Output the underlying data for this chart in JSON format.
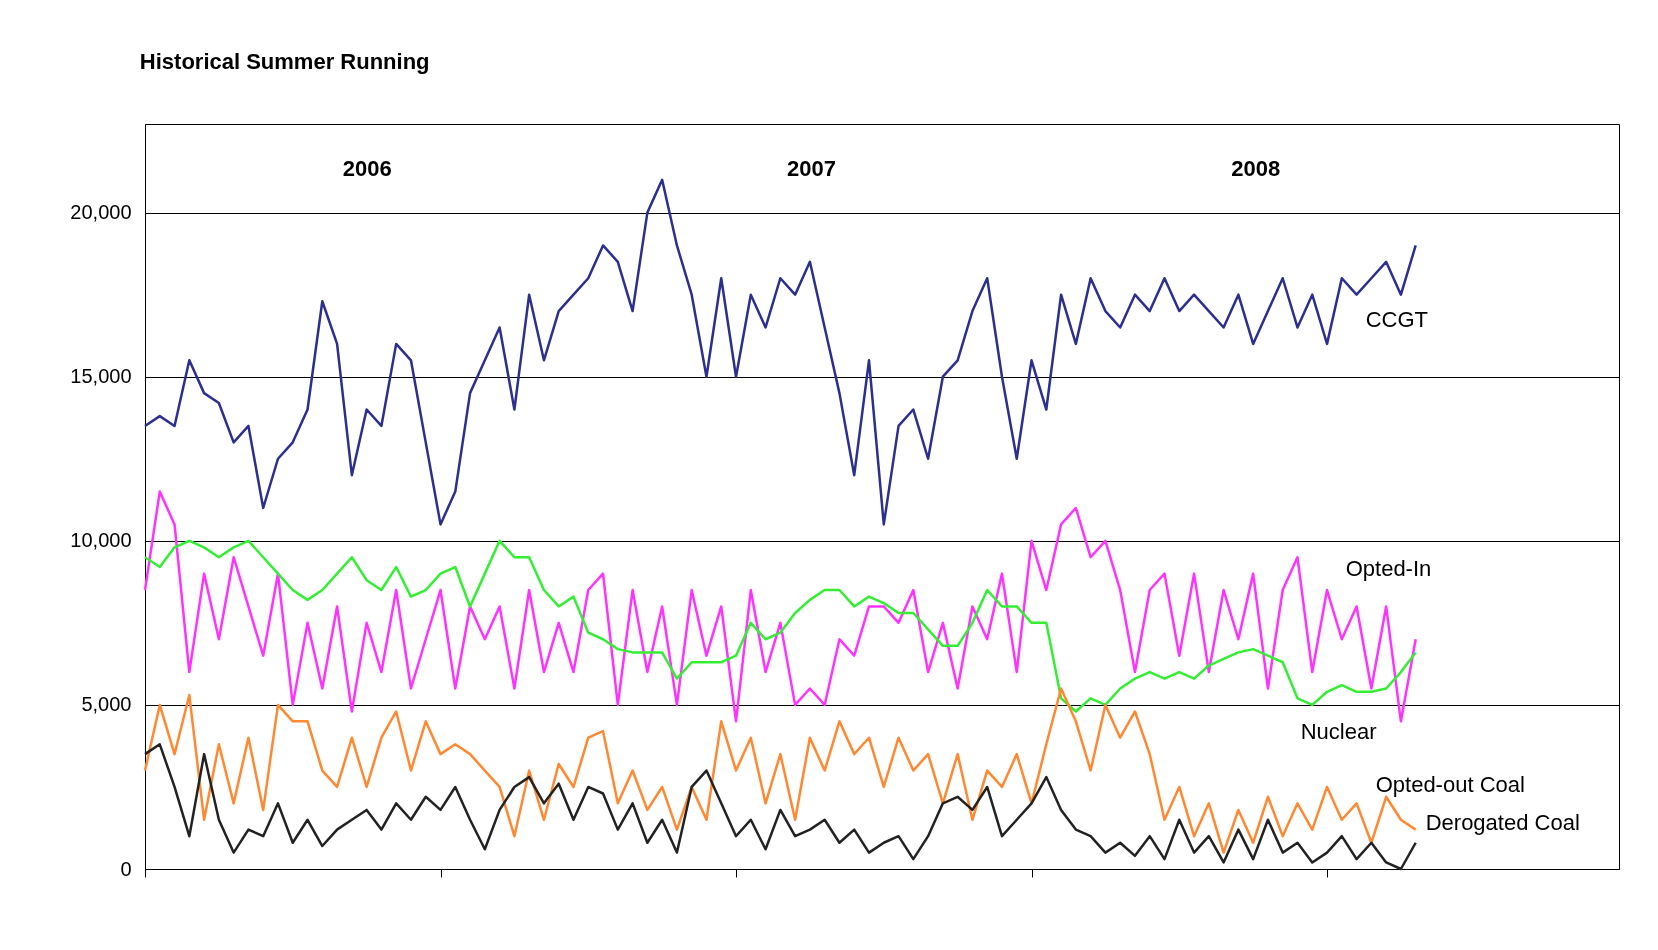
{
  "chart_data": {
    "type": "line",
    "title": "Historical Summer Running",
    "annotations": [
      "2006",
      "2007",
      "2008"
    ],
    "categories": [
      null,
      null,
      null,
      null,
      null,
      null,
      null,
      null,
      null,
      null,
      null,
      null,
      null,
      null,
      null,
      null,
      null,
      null,
      null,
      null,
      null,
      null,
      null,
      null,
      null,
      null,
      null,
      null,
      null,
      null,
      null,
      null,
      null,
      null,
      null,
      null,
      null,
      null,
      null,
      null,
      null,
      null,
      null,
      null,
      null,
      null,
      null,
      null,
      null,
      null,
      null,
      null,
      null,
      null,
      null,
      null,
      null,
      null,
      null,
      null,
      null,
      null,
      null,
      null,
      null,
      null,
      null,
      null,
      null,
      null,
      null,
      null,
      null,
      null,
      null,
      null,
      null,
      null,
      null,
      null,
      null,
      null,
      null,
      null,
      null,
      null,
      null
    ],
    "ylim": [
      0,
      22700
    ],
    "yticks": [
      0,
      {
        "value": 5000,
        "label": "5,000"
      },
      {
        "value": 10000,
        "label": "10,000"
      },
      {
        "value": 15000,
        "label": "15,000"
      },
      {
        "value": 20000,
        "label": "20,000"
      }
    ],
    "grid": "y",
    "legend": false,
    "series": [
      {
        "name": "CCGT",
        "color": "#2b2f8f",
        "values": [
          13500,
          13800,
          13500,
          15500,
          14500,
          14200,
          13000,
          13500,
          11000,
          12500,
          13000,
          14000,
          17300,
          16000,
          12000,
          14000,
          13500,
          16000,
          15500,
          13000,
          10500,
          11500,
          14500,
          15500,
          16500,
          14000,
          17500,
          15500,
          17000,
          17500,
          18000,
          19000,
          18500,
          17000,
          20000,
          21000,
          19000,
          17500,
          15000,
          18000,
          15000,
          17500,
          16500,
          18000,
          17500,
          18500,
          16500,
          14500,
          12000,
          15500,
          10500,
          13500,
          14000,
          12500,
          15000,
          15500,
          17000,
          18000,
          15000,
          12500,
          15500,
          14000,
          17500,
          16000,
          18000,
          17000,
          16500,
          17500,
          17000,
          18000,
          17000,
          17500,
          17000,
          16500,
          17500,
          16000,
          17000,
          18000,
          16500,
          17500,
          16000,
          18000,
          17500,
          18000,
          18500,
          17500,
          19000
        ]
      },
      {
        "name": "Opted-In",
        "color": "#ff33ff",
        "values": [
          8500,
          11500,
          10500,
          6000,
          9000,
          7000,
          9500,
          8000,
          6500,
          9000,
          5000,
          7500,
          5500,
          8000,
          4800,
          7500,
          6000,
          8500,
          5500,
          7000,
          8500,
          5500,
          8000,
          7000,
          8000,
          5500,
          8500,
          6000,
          7500,
          6000,
          8500,
          9000,
          5000,
          8500,
          6000,
          8000,
          5000,
          8500,
          6500,
          8000,
          4500,
          8500,
          6000,
          7500,
          5000,
          5500,
          5000,
          7000,
          6500,
          8000,
          8000,
          7500,
          8500,
          6000,
          7500,
          5500,
          8000,
          7000,
          9000,
          6000,
          10000,
          8500,
          10500,
          11000,
          9500,
          10000,
          8500,
          6000,
          8500,
          9000,
          6500,
          9000,
          6000,
          8500,
          7000,
          9000,
          5500,
          8500,
          9500,
          6000,
          8500,
          7000,
          8000,
          5500,
          8000,
          4500,
          7000
        ]
      },
      {
        "name": "Nuclear",
        "color": "#33ee33",
        "values": [
          9500,
          9200,
          9800,
          10000,
          9800,
          9500,
          9800,
          10000,
          9500,
          9000,
          8500,
          8200,
          8500,
          9000,
          9500,
          8800,
          8500,
          9200,
          8300,
          8500,
          9000,
          9200,
          8000,
          9000,
          10000,
          9500,
          9500,
          8500,
          8000,
          8300,
          7200,
          7000,
          6700,
          6600,
          6600,
          6600,
          5800,
          6300,
          6300,
          6300,
          6500,
          7500,
          7000,
          7200,
          7800,
          8200,
          8500,
          8500,
          8000,
          8300,
          8100,
          7800,
          7800,
          7300,
          6800,
          6800,
          7500,
          8500,
          8000,
          8000,
          7500,
          7500,
          5200,
          4800,
          5200,
          5000,
          5500,
          5800,
          6000,
          5800,
          6000,
          5800,
          6200,
          6400,
          6600,
          6700,
          6500,
          6300,
          5200,
          5000,
          5400,
          5600,
          5400,
          5400,
          5500,
          6000,
          6600
        ]
      },
      {
        "name": "Opted-out Coal",
        "color": "#ff8833",
        "values": [
          3000,
          5000,
          3500,
          5300,
          1500,
          3800,
          2000,
          4000,
          1800,
          5000,
          4500,
          4500,
          3000,
          2500,
          4000,
          2500,
          4000,
          4800,
          3000,
          4500,
          3500,
          3800,
          3500,
          3000,
          2500,
          1000,
          3000,
          1500,
          3200,
          2500,
          4000,
          4200,
          2000,
          3000,
          1800,
          2500,
          1200,
          2500,
          1500,
          4500,
          3000,
          4000,
          2000,
          3500,
          1500,
          4000,
          3000,
          4500,
          3500,
          4000,
          2500,
          4000,
          3000,
          3500,
          2000,
          3500,
          1500,
          3000,
          2500,
          3500,
          2000,
          3800,
          5500,
          4500,
          3000,
          5000,
          4000,
          4800,
          3500,
          1500,
          2500,
          1000,
          2000,
          500,
          1800,
          800,
          2200,
          1000,
          2000,
          1200,
          2500,
          1500,
          2000,
          800,
          2200,
          1500,
          1200
        ]
      },
      {
        "name": "Derogated Coal",
        "color": "#222222",
        "values": [
          3500,
          3800,
          2500,
          1000,
          3500,
          1500,
          500,
          1200,
          1000,
          2000,
          800,
          1500,
          700,
          1200,
          1500,
          1800,
          1200,
          2000,
          1500,
          2200,
          1800,
          2500,
          1500,
          600,
          1800,
          2500,
          2800,
          2000,
          2600,
          1500,
          2500,
          2300,
          1200,
          2000,
          800,
          1500,
          500,
          2500,
          3000,
          2000,
          1000,
          1500,
          600,
          1800,
          1000,
          1200,
          1500,
          800,
          1200,
          500,
          800,
          1000,
          300,
          1000,
          2000,
          2200,
          1800,
          2500,
          1000,
          1500,
          2000,
          2800,
          1800,
          1200,
          1000,
          500,
          800,
          400,
          1000,
          300,
          1500,
          500,
          1000,
          200,
          1200,
          300,
          1500,
          500,
          800,
          200,
          500,
          1000,
          300,
          800,
          200,
          0,
          800
        ]
      }
    ]
  }
}
